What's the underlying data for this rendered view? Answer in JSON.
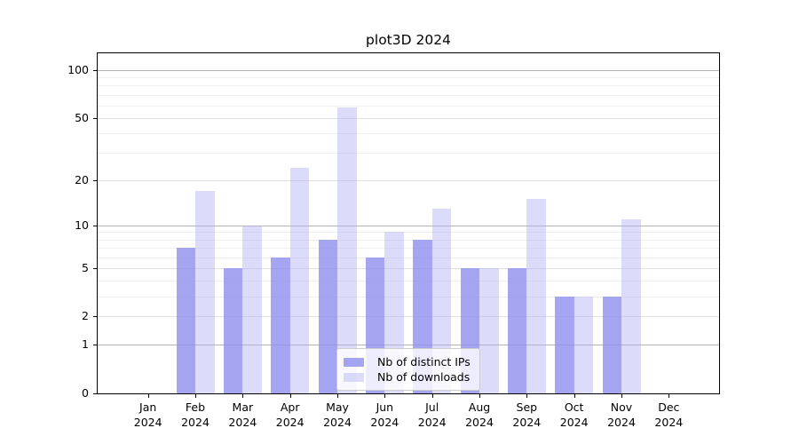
{
  "chart_data": {
    "type": "bar",
    "title": "plot3D 2024",
    "x_months": [
      "Jan",
      "Feb",
      "Mar",
      "Apr",
      "May",
      "Jun",
      "Jul",
      "Aug",
      "Sep",
      "Oct",
      "Nov",
      "Dec"
    ],
    "x_year": "2024",
    "series": [
      {
        "name": "Nb of distinct IPs",
        "color": "#8f8fef",
        "alpha": 0.8,
        "values": [
          0,
          7,
          5,
          6,
          8,
          6,
          8,
          5,
          5,
          3,
          3,
          0
        ]
      },
      {
        "name": "Nb of downloads",
        "color": "#b1b1f4",
        "alpha": 0.45,
        "values": [
          0,
          17,
          10,
          24,
          58,
          9,
          13,
          5,
          15,
          3,
          11,
          0
        ]
      }
    ],
    "y_scale": "log1p",
    "y_ticks": [
      0,
      1,
      2,
      5,
      10,
      20,
      50,
      100
    ],
    "y_minor_gridlines": [
      3,
      4,
      6,
      7,
      8,
      9,
      30,
      40,
      60,
      70,
      80,
      90
    ],
    "ylim": [
      0,
      128
    ],
    "grid": true,
    "legend_position": "lower center",
    "grid_colors": {
      "decade": "#b3b3b3",
      "labeled": "#e0e0e0",
      "minor": "#efefef"
    }
  }
}
